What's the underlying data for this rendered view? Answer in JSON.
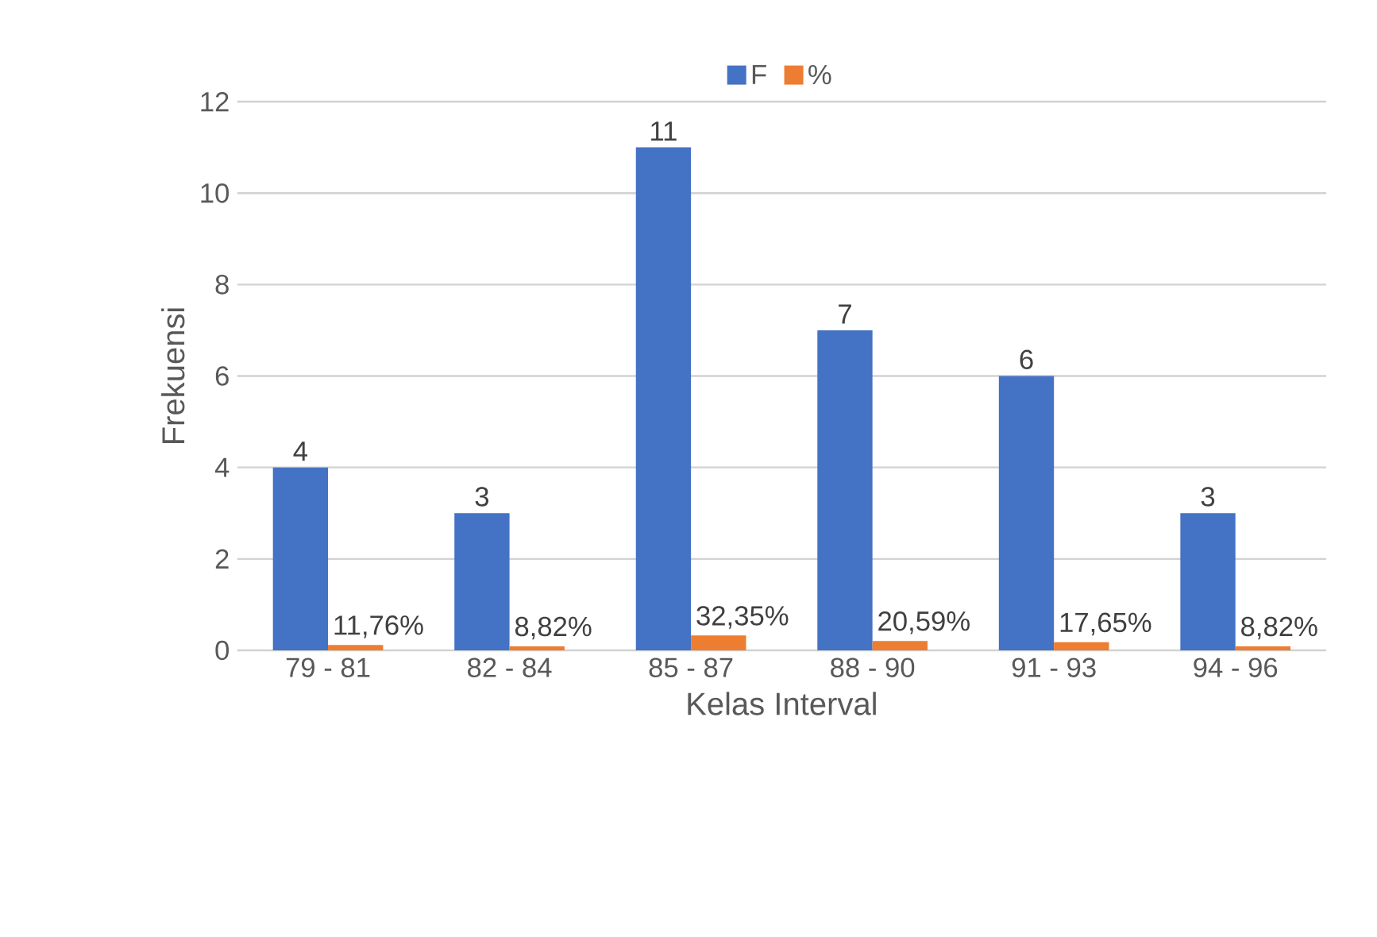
{
  "chart_data": {
    "type": "bar",
    "xlabel": "Kelas Interval",
    "ylabel": "Frekuensi",
    "categories": [
      "79 - 81",
      "82 - 84",
      "85 - 87",
      "88 - 90",
      "91 - 93",
      "94 - 96"
    ],
    "series": [
      {
        "name": "F",
        "color": "#4472c4",
        "values": [
          4,
          3,
          11,
          7,
          6,
          3
        ],
        "value_labels": [
          "4",
          "3",
          "11",
          "7",
          "6",
          "3"
        ]
      },
      {
        "name": "%",
        "color": "#ed7d31",
        "values": [
          0.1176,
          0.0882,
          0.3235,
          0.2059,
          0.1765,
          0.0882
        ],
        "value_labels": [
          "11,76%",
          "8,82%",
          "32,35%",
          "20,59%",
          "17,65%",
          "8,82%"
        ]
      }
    ],
    "ylim": [
      0,
      12
    ],
    "yticks": [
      0,
      2,
      4,
      6,
      8,
      10,
      12
    ],
    "grid": "y",
    "legend": "top"
  }
}
